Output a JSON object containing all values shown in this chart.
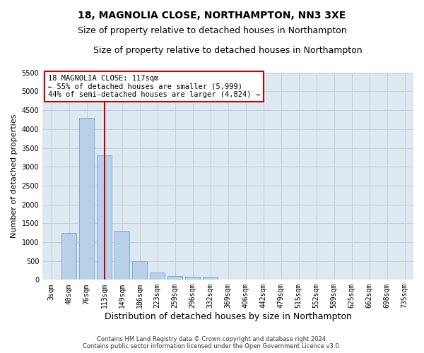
{
  "title": "18, MAGNOLIA CLOSE, NORTHAMPTON, NN3 3XE",
  "subtitle": "Size of property relative to detached houses in Northampton",
  "xlabel": "Distribution of detached houses by size in Northampton",
  "ylabel": "Number of detached properties",
  "categories": [
    "3sqm",
    "40sqm",
    "76sqm",
    "113sqm",
    "149sqm",
    "186sqm",
    "223sqm",
    "259sqm",
    "296sqm",
    "332sqm",
    "369sqm",
    "406sqm",
    "442sqm",
    "479sqm",
    "515sqm",
    "552sqm",
    "589sqm",
    "625sqm",
    "662sqm",
    "698sqm",
    "735sqm"
  ],
  "values": [
    0,
    1250,
    4300,
    3300,
    1300,
    500,
    200,
    100,
    75,
    75,
    0,
    0,
    0,
    0,
    0,
    0,
    0,
    0,
    0,
    0,
    0
  ],
  "bar_color": "#b8d0e8",
  "bar_edge_color": "#6699cc",
  "property_index": 3,
  "property_line_color": "#cc0000",
  "annotation_text": "18 MAGNOLIA CLOSE: 117sqm\n← 55% of detached houses are smaller (5,999)\n44% of semi-detached houses are larger (4,824) →",
  "annotation_box_color": "#ffffff",
  "annotation_box_edge": "#cc0000",
  "ylim": [
    0,
    5500
  ],
  "yticks": [
    0,
    500,
    1000,
    1500,
    2000,
    2500,
    3000,
    3500,
    4000,
    4500,
    5000,
    5500
  ],
  "footer_line1": "Contains HM Land Registry data © Crown copyright and database right 2024.",
  "footer_line2": "Contains public sector information licensed under the Open Government Licence v3.0.",
  "background_color": "#ffffff",
  "plot_bg_color": "#dde8f0",
  "grid_color": "#c0cfe0",
  "title_fontsize": 10,
  "subtitle_fontsize": 9,
  "annotation_fontsize": 7.5,
  "ylabel_fontsize": 8,
  "xlabel_fontsize": 9,
  "tick_fontsize": 7,
  "footer_fontsize": 6
}
